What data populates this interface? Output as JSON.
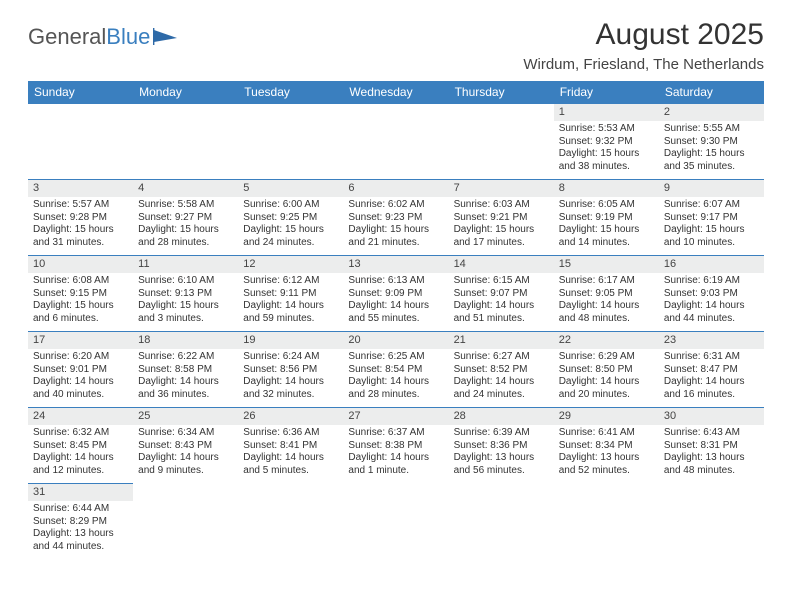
{
  "logo": {
    "text1": "General",
    "text2": "Blue"
  },
  "title": "August 2025",
  "location": "Wirdum, Friesland, The Netherlands",
  "colors": {
    "accent": "#3a7fbf",
    "daynum_bg": "#eceded"
  },
  "weekdays": [
    "Sunday",
    "Monday",
    "Tuesday",
    "Wednesday",
    "Thursday",
    "Friday",
    "Saturday"
  ],
  "weeks": [
    [
      null,
      null,
      null,
      null,
      null,
      {
        "n": "1",
        "sr": "5:53 AM",
        "ss": "9:32 PM",
        "dl": "15 hours and 38 minutes."
      },
      {
        "n": "2",
        "sr": "5:55 AM",
        "ss": "9:30 PM",
        "dl": "15 hours and 35 minutes."
      }
    ],
    [
      {
        "n": "3",
        "sr": "5:57 AM",
        "ss": "9:28 PM",
        "dl": "15 hours and 31 minutes."
      },
      {
        "n": "4",
        "sr": "5:58 AM",
        "ss": "9:27 PM",
        "dl": "15 hours and 28 minutes."
      },
      {
        "n": "5",
        "sr": "6:00 AM",
        "ss": "9:25 PM",
        "dl": "15 hours and 24 minutes."
      },
      {
        "n": "6",
        "sr": "6:02 AM",
        "ss": "9:23 PM",
        "dl": "15 hours and 21 minutes."
      },
      {
        "n": "7",
        "sr": "6:03 AM",
        "ss": "9:21 PM",
        "dl": "15 hours and 17 minutes."
      },
      {
        "n": "8",
        "sr": "6:05 AM",
        "ss": "9:19 PM",
        "dl": "15 hours and 14 minutes."
      },
      {
        "n": "9",
        "sr": "6:07 AM",
        "ss": "9:17 PM",
        "dl": "15 hours and 10 minutes."
      }
    ],
    [
      {
        "n": "10",
        "sr": "6:08 AM",
        "ss": "9:15 PM",
        "dl": "15 hours and 6 minutes."
      },
      {
        "n": "11",
        "sr": "6:10 AM",
        "ss": "9:13 PM",
        "dl": "15 hours and 3 minutes."
      },
      {
        "n": "12",
        "sr": "6:12 AM",
        "ss": "9:11 PM",
        "dl": "14 hours and 59 minutes."
      },
      {
        "n": "13",
        "sr": "6:13 AM",
        "ss": "9:09 PM",
        "dl": "14 hours and 55 minutes."
      },
      {
        "n": "14",
        "sr": "6:15 AM",
        "ss": "9:07 PM",
        "dl": "14 hours and 51 minutes."
      },
      {
        "n": "15",
        "sr": "6:17 AM",
        "ss": "9:05 PM",
        "dl": "14 hours and 48 minutes."
      },
      {
        "n": "16",
        "sr": "6:19 AM",
        "ss": "9:03 PM",
        "dl": "14 hours and 44 minutes."
      }
    ],
    [
      {
        "n": "17",
        "sr": "6:20 AM",
        "ss": "9:01 PM",
        "dl": "14 hours and 40 minutes."
      },
      {
        "n": "18",
        "sr": "6:22 AM",
        "ss": "8:58 PM",
        "dl": "14 hours and 36 minutes."
      },
      {
        "n": "19",
        "sr": "6:24 AM",
        "ss": "8:56 PM",
        "dl": "14 hours and 32 minutes."
      },
      {
        "n": "20",
        "sr": "6:25 AM",
        "ss": "8:54 PM",
        "dl": "14 hours and 28 minutes."
      },
      {
        "n": "21",
        "sr": "6:27 AM",
        "ss": "8:52 PM",
        "dl": "14 hours and 24 minutes."
      },
      {
        "n": "22",
        "sr": "6:29 AM",
        "ss": "8:50 PM",
        "dl": "14 hours and 20 minutes."
      },
      {
        "n": "23",
        "sr": "6:31 AM",
        "ss": "8:47 PM",
        "dl": "14 hours and 16 minutes."
      }
    ],
    [
      {
        "n": "24",
        "sr": "6:32 AM",
        "ss": "8:45 PM",
        "dl": "14 hours and 12 minutes."
      },
      {
        "n": "25",
        "sr": "6:34 AM",
        "ss": "8:43 PM",
        "dl": "14 hours and 9 minutes."
      },
      {
        "n": "26",
        "sr": "6:36 AM",
        "ss": "8:41 PM",
        "dl": "14 hours and 5 minutes."
      },
      {
        "n": "27",
        "sr": "6:37 AM",
        "ss": "8:38 PM",
        "dl": "14 hours and 1 minute."
      },
      {
        "n": "28",
        "sr": "6:39 AM",
        "ss": "8:36 PM",
        "dl": "13 hours and 56 minutes."
      },
      {
        "n": "29",
        "sr": "6:41 AM",
        "ss": "8:34 PM",
        "dl": "13 hours and 52 minutes."
      },
      {
        "n": "30",
        "sr": "6:43 AM",
        "ss": "8:31 PM",
        "dl": "13 hours and 48 minutes."
      }
    ],
    [
      {
        "n": "31",
        "sr": "6:44 AM",
        "ss": "8:29 PM",
        "dl": "13 hours and 44 minutes."
      },
      null,
      null,
      null,
      null,
      null,
      null
    ]
  ],
  "labels": {
    "sunrise": "Sunrise: ",
    "sunset": "Sunset: ",
    "daylight": "Daylight: "
  }
}
